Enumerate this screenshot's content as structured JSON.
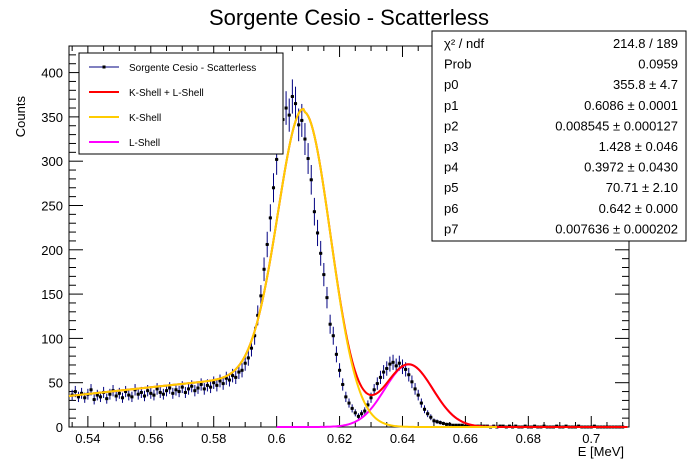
{
  "chart_data": {
    "type": "scatter",
    "title": "Sorgente Cesio - Scatterless",
    "xlabel": "E [MeV]",
    "ylabel": "Counts",
    "xlim": [
      0.534,
      0.712
    ],
    "ylim": [
      0,
      430
    ],
    "xticks": [
      0.54,
      0.56,
      0.58,
      0.6,
      0.62,
      0.64,
      0.66,
      0.68,
      0.7
    ],
    "xtick_labels": [
      "0.54",
      "0.56",
      "0.58",
      "0.6",
      "0.62",
      "0.64",
      "0.66",
      "0.68",
      "0.7"
    ],
    "yticks": [
      0,
      50,
      100,
      150,
      200,
      250,
      300,
      350,
      400
    ],
    "ytick_labels": [
      "0",
      "50",
      "100",
      "150",
      "200",
      "250",
      "300",
      "350",
      "400"
    ],
    "legend_position": "top-left",
    "legend": [
      {
        "label": "Sorgente Cesio - Scatterless",
        "color": "#000080",
        "style": "marker"
      },
      {
        "label": "K-Shell + L-Shell",
        "color": "#ff0000",
        "style": "line"
      },
      {
        "label": "K-Shell",
        "color": "#ffcc00",
        "style": "line"
      },
      {
        "label": "L-Shell",
        "color": "#ff00ff",
        "style": "line"
      }
    ],
    "stats": [
      {
        "name": "χ² / ndf",
        "value": "214.8 / 189"
      },
      {
        "name": "Prob",
        "value": "0.0959"
      },
      {
        "name": "p0",
        "value": "355.8 ± 4.7"
      },
      {
        "name": "p1",
        "value": "0.6086 ± 0.0001"
      },
      {
        "name": "p2",
        "value": "0.008545 ± 0.000127"
      },
      {
        "name": "p3",
        "value": "1.428 ± 0.046"
      },
      {
        "name": "p4",
        "value": "0.3972 ± 0.0430"
      },
      {
        "name": "p5",
        "value": "70.71 ± 2.10"
      },
      {
        "name": "p6",
        "value": "0.642 ± 0.000"
      },
      {
        "name": "p7",
        "value": "0.007636 ± 0.000202"
      }
    ],
    "fit_params": {
      "p0": 355.8,
      "p1": 0.6086,
      "p2": 0.008545,
      "p3": 1.428,
      "p4": 0.3972,
      "p5": 70.71,
      "p6": 0.642,
      "p7": 0.007636
    },
    "data": {
      "x": [
        0.535,
        0.536,
        0.537,
        0.538,
        0.539,
        0.54,
        0.541,
        0.542,
        0.543,
        0.544,
        0.545,
        0.546,
        0.547,
        0.548,
        0.549,
        0.55,
        0.551,
        0.552,
        0.553,
        0.554,
        0.555,
        0.556,
        0.557,
        0.558,
        0.559,
        0.56,
        0.561,
        0.562,
        0.563,
        0.564,
        0.565,
        0.566,
        0.567,
        0.568,
        0.569,
        0.57,
        0.571,
        0.572,
        0.573,
        0.574,
        0.575,
        0.576,
        0.577,
        0.578,
        0.579,
        0.58,
        0.581,
        0.582,
        0.583,
        0.584,
        0.585,
        0.586,
        0.587,
        0.588,
        0.589,
        0.59,
        0.591,
        0.592,
        0.593,
        0.594,
        0.595,
        0.596,
        0.597,
        0.598,
        0.599,
        0.6,
        0.601,
        0.602,
        0.603,
        0.604,
        0.605,
        0.606,
        0.607,
        0.608,
        0.609,
        0.61,
        0.611,
        0.612,
        0.613,
        0.614,
        0.615,
        0.616,
        0.617,
        0.618,
        0.619,
        0.62,
        0.621,
        0.622,
        0.623,
        0.624,
        0.625,
        0.626,
        0.627,
        0.628,
        0.629,
        0.63,
        0.631,
        0.632,
        0.633,
        0.634,
        0.635,
        0.636,
        0.637,
        0.638,
        0.639,
        0.64,
        0.641,
        0.642,
        0.643,
        0.644,
        0.645,
        0.646,
        0.647,
        0.648,
        0.649,
        0.65,
        0.651,
        0.652,
        0.653,
        0.654,
        0.655,
        0.656,
        0.657,
        0.658,
        0.659,
        0.66,
        0.661,
        0.662,
        0.663,
        0.664,
        0.665,
        0.666,
        0.667,
        0.668,
        0.669,
        0.67,
        0.671,
        0.672,
        0.673,
        0.674,
        0.675,
        0.676,
        0.677,
        0.678,
        0.679,
        0.68,
        0.681,
        0.682,
        0.683,
        0.684,
        0.685,
        0.686,
        0.687,
        0.688,
        0.689,
        0.69,
        0.691,
        0.692,
        0.693,
        0.694,
        0.695,
        0.696,
        0.697,
        0.698,
        0.699,
        0.7,
        0.701,
        0.702,
        0.703,
        0.704,
        0.705,
        0.706,
        0.707,
        0.708,
        0.709,
        0.71
      ],
      "y": [
        36,
        40,
        34,
        38,
        33,
        37,
        42,
        31,
        36,
        34,
        39,
        32,
        37,
        41,
        35,
        38,
        33,
        40,
        36,
        34,
        42,
        37,
        39,
        35,
        41,
        38,
        36,
        43,
        39,
        37,
        41,
        44,
        38,
        42,
        40,
        45,
        39,
        43,
        46,
        41,
        44,
        48,
        43,
        47,
        45,
        50,
        47,
        52,
        49,
        55,
        53,
        58,
        56,
        62,
        64,
        72,
        78,
        89,
        103,
        126,
        148,
        178,
        206,
        236,
        270,
        302,
        329,
        347,
        360,
        352,
        373,
        365,
        341,
        346,
        325,
        303,
        279,
        243,
        219,
        196,
        172,
        146,
        116,
        103,
        82,
        64,
        48,
        34,
        27,
        21,
        16,
        12,
        15,
        18,
        25,
        33,
        42,
        49,
        56,
        62,
        66,
        71,
        73,
        69,
        72,
        68,
        65,
        59,
        51,
        43,
        36,
        27,
        20,
        15,
        11,
        7,
        6,
        5,
        4,
        3,
        3,
        2,
        2,
        2,
        2,
        1,
        2,
        1,
        1,
        1,
        1,
        1,
        1,
        0,
        1,
        0,
        1,
        1,
        0,
        1,
        0,
        1,
        0,
        0,
        1,
        0,
        0,
        1,
        0,
        0,
        1,
        0,
        0,
        0,
        1,
        0,
        0,
        1,
        0,
        0,
        0,
        1,
        0,
        0,
        0,
        0,
        1,
        0,
        0,
        0,
        0,
        0,
        0,
        0,
        0,
        0
      ]
    }
  }
}
